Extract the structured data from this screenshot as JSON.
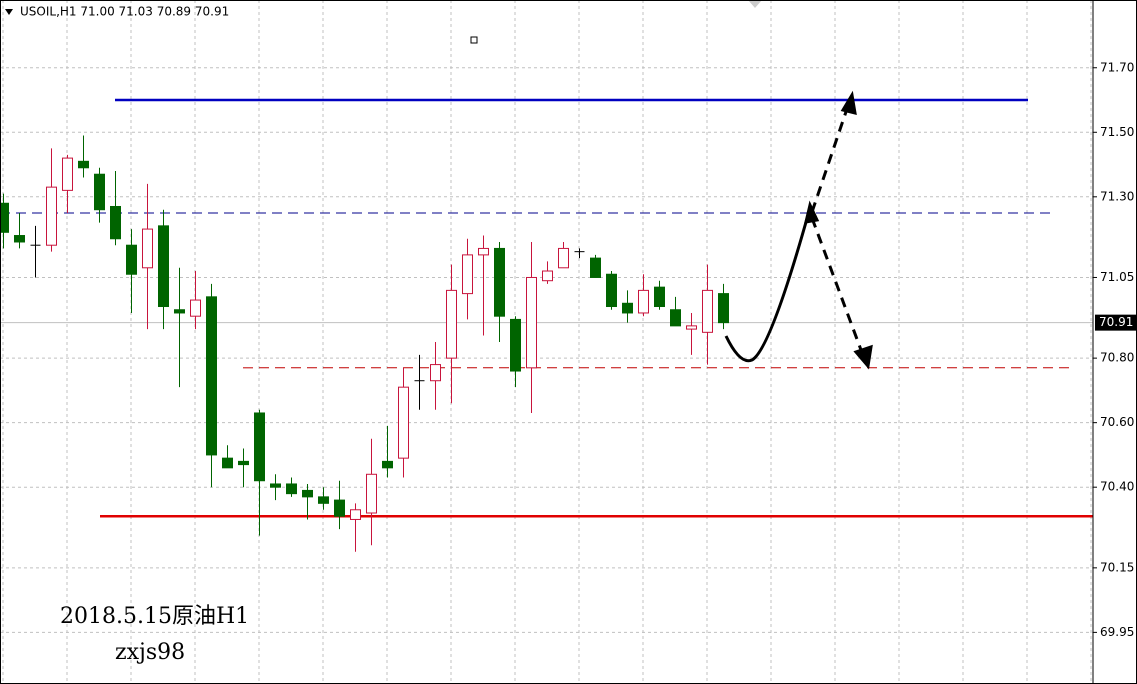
{
  "chart_data": {
    "type": "candlestick",
    "title": "USOIL,H1  71.00 71.03 70.89 70.91",
    "annotations": [
      "2018.5.15原油H1",
      "zxjs98"
    ],
    "open": [
      71.28,
      71.18,
      71.15,
      71.15,
      71.32,
      71.41,
      71.37,
      71.27,
      71.15,
      71.08,
      71.21,
      70.95,
      70.93,
      70.99,
      70.49,
      70.48,
      70.63,
      70.41,
      70.41,
      70.39,
      70.37,
      70.36,
      70.3,
      70.32,
      70.48,
      70.49,
      70.73,
      70.73,
      70.8,
      71.0,
      71.12,
      71.14,
      70.92,
      70.77,
      71.04,
      71.08,
      71.13,
      71.11,
      71.06,
      70.97,
      70.94,
      71.02,
      70.95,
      70.89,
      70.88,
      71.0
    ],
    "high": [
      71.31,
      71.25,
      71.21,
      71.45,
      71.43,
      71.49,
      71.39,
      71.38,
      71.2,
      71.34,
      71.26,
      71.08,
      71.07,
      71.03,
      70.53,
      70.52,
      70.64,
      70.44,
      70.43,
      70.41,
      70.4,
      70.42,
      70.35,
      70.55,
      70.59,
      70.77,
      70.81,
      70.85,
      71.09,
      71.17,
      71.18,
      71.16,
      70.93,
      71.16,
      71.1,
      71.16,
      71.14,
      71.12,
      71.07,
      71.01,
      71.06,
      71.04,
      70.99,
      70.94,
      71.09,
      71.03
    ],
    "low": [
      71.14,
      71.14,
      71.05,
      71.13,
      71.25,
      71.36,
      71.22,
      71.15,
      70.94,
      70.89,
      70.89,
      70.71,
      70.89,
      70.4,
      70.46,
      70.4,
      70.25,
      70.36,
      70.37,
      70.3,
      70.33,
      70.27,
      70.2,
      70.22,
      70.43,
      70.43,
      70.64,
      70.64,
      70.66,
      70.92,
      70.87,
      70.85,
      70.71,
      70.63,
      71.03,
      71.08,
      71.11,
      71.05,
      70.95,
      70.91,
      70.93,
      70.95,
      70.9,
      70.81,
      70.78,
      70.89
    ],
    "close": [
      71.19,
      71.16,
      71.15,
      71.33,
      71.42,
      71.39,
      71.26,
      71.17,
      71.06,
      71.2,
      70.96,
      70.94,
      70.98,
      70.5,
      70.46,
      70.47,
      70.42,
      70.4,
      70.38,
      70.37,
      70.35,
      70.31,
      70.33,
      70.44,
      70.46,
      70.71,
      70.73,
      70.78,
      71.01,
      71.12,
      71.14,
      70.93,
      70.76,
      71.05,
      71.07,
      71.14,
      71.13,
      71.05,
      70.96,
      70.94,
      71.01,
      70.96,
      70.9,
      70.9,
      71.01,
      70.91
    ],
    "up_color": "#ffffff",
    "up_edge": "#c8143c",
    "down_color": "#006400",
    "doji_color": "#000000",
    "levels": [
      {
        "value": 71.6,
        "color": "#0000c0",
        "style": "solid"
      },
      {
        "value": 71.25,
        "color": "#00008b",
        "style": "dashed"
      },
      {
        "value": 70.77,
        "color": "#c00000",
        "style": "dashed"
      },
      {
        "value": 70.31,
        "color": "#e00000",
        "style": "solid"
      }
    ],
    "current_price": {
      "value": 70.91,
      "label": "70.91"
    },
    "ylim": [
      69.79,
      71.91
    ],
    "yticks": [
      {
        "value": 71.7,
        "label": "71.70"
      },
      {
        "value": 71.5,
        "label": "71.50"
      },
      {
        "value": 71.3,
        "label": "71.30"
      },
      71.05,
      {
        "value": 70.8,
        "label": "70.80"
      },
      {
        "value": 70.6,
        "label": "70.60"
      },
      {
        "value": 70.4,
        "label": "70.40"
      },
      70.15,
      69.95
    ],
    "grid": true
  }
}
